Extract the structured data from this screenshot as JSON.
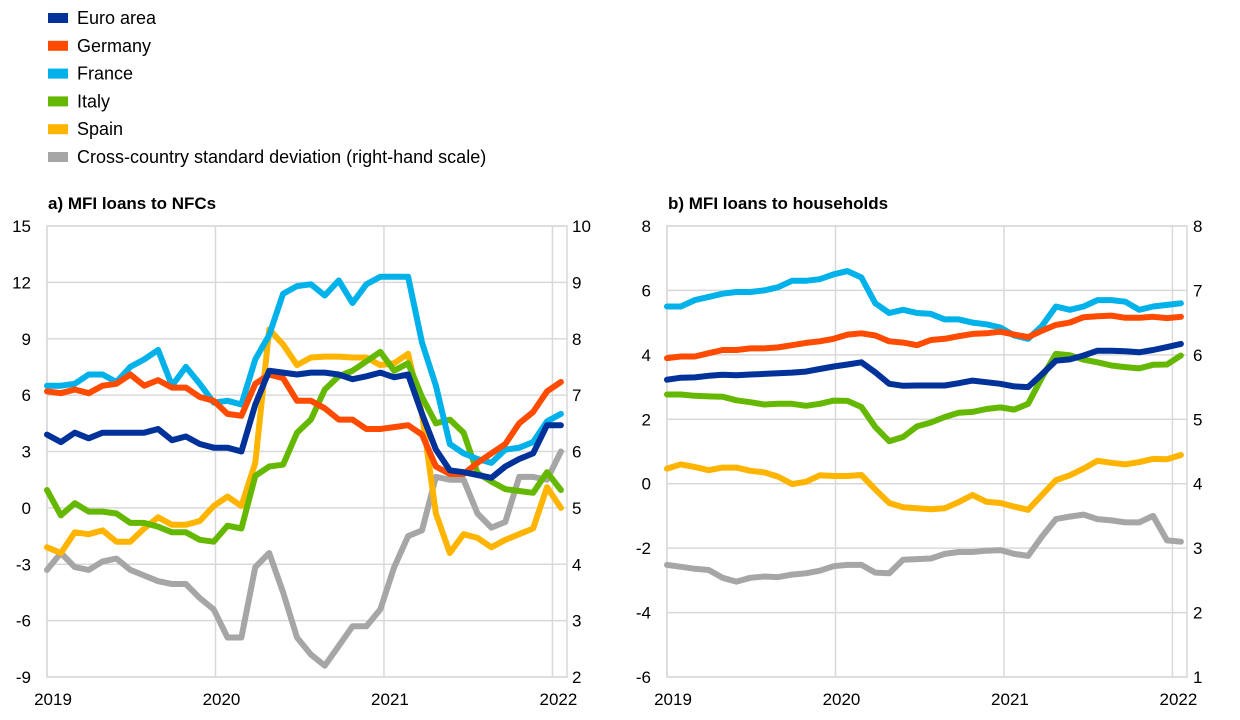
{
  "chart_data": {
    "legend": {
      "placement": "top-left",
      "entries": [
        {
          "key": "euro",
          "label": "Euro area",
          "color": "#003299"
        },
        {
          "key": "germany",
          "label": "Germany",
          "color": "#FF4B00"
        },
        {
          "key": "france",
          "label": "France",
          "color": "#00B1EA"
        },
        {
          "key": "italy",
          "label": "Italy",
          "color": "#65B800"
        },
        {
          "key": "spain",
          "label": "Spain",
          "color": "#FFB400"
        },
        {
          "key": "sd",
          "label": "Cross-country standard deviation (right-hand scale)",
          "color": "#A6A6A6"
        }
      ]
    },
    "panels": [
      {
        "type": "line",
        "title": "a) MFI loans to NFCs",
        "frequency": "monthly",
        "x_start": "2019-01",
        "xticks": [
          "2019",
          "2020",
          "2021",
          "2022"
        ],
        "ylim": [
          -9,
          15
        ],
        "yticks": [
          "15",
          "12",
          "9",
          "6",
          "3",
          "0",
          "-3",
          "-6",
          "-9"
        ],
        "y2lim": [
          2,
          10
        ],
        "y2ticks": [
          "10",
          "9",
          "8",
          "7",
          "6",
          "5",
          "4",
          "3",
          "2"
        ],
        "grid": true,
        "series": [
          {
            "key": "euro",
            "axis": "left",
            "values": [
              3.9,
              3.5,
              4.0,
              3.7,
              4.0,
              4.0,
              4.0,
              4.0,
              4.2,
              3.6,
              3.8,
              3.4,
              3.2,
              3.2,
              3.0,
              5.5,
              7.3,
              7.2,
              7.1,
              7.2,
              7.2,
              7.1,
              6.85,
              7.0,
              7.2,
              6.95,
              7.1,
              5.0,
              3.1,
              2.0,
              1.9,
              1.75,
              1.6,
              2.2,
              2.6,
              2.9,
              4.4,
              4.4
            ]
          },
          {
            "key": "germany",
            "axis": "left",
            "values": [
              6.2,
              6.1,
              6.3,
              6.1,
              6.5,
              6.6,
              7.1,
              6.5,
              6.8,
              6.4,
              6.4,
              5.9,
              5.7,
              5.0,
              4.9,
              6.6,
              7.1,
              6.9,
              5.7,
              5.7,
              5.3,
              4.7,
              4.7,
              4.2,
              4.2,
              4.3,
              4.4,
              3.9,
              2.2,
              1.8,
              1.8,
              2.4,
              2.9,
              3.4,
              4.5,
              5.1,
              6.2,
              6.7
            ]
          },
          {
            "key": "france",
            "axis": "left",
            "values": [
              6.5,
              6.5,
              6.6,
              7.1,
              7.1,
              6.7,
              7.5,
              7.9,
              8.4,
              6.5,
              7.5,
              6.6,
              5.6,
              5.7,
              5.5,
              7.9,
              9.2,
              11.4,
              11.8,
              11.9,
              11.3,
              12.1,
              10.9,
              11.9,
              12.3,
              12.3,
              12.3,
              8.8,
              6.5,
              3.4,
              2.9,
              2.6,
              2.4,
              3.1,
              3.2,
              3.5,
              4.6,
              5.0
            ]
          },
          {
            "key": "italy",
            "axis": "left",
            "values": [
              0.95,
              -0.4,
              0.25,
              -0.2,
              -0.2,
              -0.3,
              -0.8,
              -0.8,
              -1.0,
              -1.3,
              -1.3,
              -1.7,
              -1.8,
              -0.95,
              -1.1,
              1.7,
              2.2,
              2.3,
              4.0,
              4.7,
              6.3,
              7.0,
              7.3,
              7.8,
              8.3,
              7.3,
              7.7,
              5.9,
              4.5,
              4.7,
              4.0,
              1.85,
              1.4,
              1.0,
              0.9,
              0.8,
              1.9,
              0.95
            ]
          },
          {
            "key": "spain",
            "axis": "left",
            "values": [
              -2.1,
              -2.4,
              -1.3,
              -1.4,
              -1.2,
              -1.8,
              -1.8,
              -1.1,
              -0.5,
              -0.9,
              -0.9,
              -0.7,
              0.1,
              0.6,
              0.1,
              2.4,
              9.5,
              8.7,
              7.6,
              8.0,
              8.05,
              8.05,
              8.0,
              8.0,
              7.6,
              7.7,
              8.2,
              5.0,
              -0.3,
              -2.4,
              -1.4,
              -1.6,
              -2.1,
              -1.7,
              -1.4,
              -1.1,
              1.1,
              0.0
            ]
          },
          {
            "key": "sd",
            "axis": "right",
            "values": [
              3.9,
              4.2,
              3.95,
              3.9,
              4.05,
              4.1,
              3.9,
              3.8,
              3.7,
              3.65,
              3.65,
              3.4,
              3.2,
              2.7,
              2.7,
              3.95,
              4.2,
              3.5,
              2.7,
              2.4,
              2.2,
              2.55,
              2.9,
              2.9,
              3.2,
              3.95,
              4.5,
              4.6,
              5.55,
              5.5,
              5.5,
              4.9,
              4.65,
              4.75,
              5.55,
              5.55,
              5.5,
              6.0
            ]
          }
        ]
      },
      {
        "type": "line",
        "title": "b) MFI loans to households",
        "frequency": "monthly",
        "x_start": "2019-01",
        "xticks": [
          "2019",
          "2020",
          "2021",
          "2022"
        ],
        "ylim": [
          -6,
          8
        ],
        "yticks": [
          "8",
          "6",
          "4",
          "2",
          "0",
          "-2",
          "-4",
          "-6"
        ],
        "y2lim": [
          1,
          8
        ],
        "y2ticks": [
          "8",
          "7",
          "6",
          "5",
          "4",
          "3",
          "2",
          "1"
        ],
        "grid": true,
        "series": [
          {
            "key": "euro",
            "axis": "left",
            "values": [
              3.23,
              3.29,
              3.3,
              3.35,
              3.38,
              3.37,
              3.39,
              3.41,
              3.43,
              3.45,
              3.48,
              3.56,
              3.64,
              3.7,
              3.77,
              3.46,
              3.1,
              3.04,
              3.05,
              3.05,
              3.05,
              3.12,
              3.2,
              3.15,
              3.1,
              3.02,
              3.0,
              3.4,
              3.82,
              3.86,
              3.98,
              4.13,
              4.13,
              4.11,
              4.08,
              4.15,
              4.24,
              4.34
            ]
          },
          {
            "key": "germany",
            "axis": "left",
            "values": [
              3.9,
              3.95,
              3.95,
              4.05,
              4.15,
              4.15,
              4.2,
              4.2,
              4.23,
              4.3,
              4.37,
              4.42,
              4.5,
              4.63,
              4.67,
              4.6,
              4.42,
              4.38,
              4.3,
              4.46,
              4.5,
              4.58,
              4.65,
              4.67,
              4.72,
              4.63,
              4.55,
              4.75,
              4.93,
              5.0,
              5.17,
              5.2,
              5.22,
              5.15,
              5.15,
              5.18,
              5.14,
              5.18
            ]
          },
          {
            "key": "france",
            "axis": "left",
            "values": [
              5.5,
              5.5,
              5.7,
              5.8,
              5.9,
              5.95,
              5.95,
              6.0,
              6.1,
              6.3,
              6.3,
              6.35,
              6.5,
              6.6,
              6.4,
              5.6,
              5.3,
              5.4,
              5.3,
              5.27,
              5.1,
              5.1,
              5.0,
              4.95,
              4.85,
              4.6,
              4.5,
              4.9,
              5.5,
              5.4,
              5.5,
              5.7,
              5.7,
              5.65,
              5.4,
              5.5,
              5.55,
              5.6
            ]
          },
          {
            "key": "italy",
            "axis": "left",
            "values": [
              2.77,
              2.77,
              2.73,
              2.71,
              2.7,
              2.59,
              2.53,
              2.46,
              2.48,
              2.48,
              2.42,
              2.48,
              2.58,
              2.57,
              2.38,
              1.76,
              1.32,
              1.45,
              1.78,
              1.9,
              2.07,
              2.2,
              2.23,
              2.32,
              2.37,
              2.3,
              2.48,
              3.3,
              4.03,
              3.99,
              3.85,
              3.77,
              3.67,
              3.62,
              3.58,
              3.69,
              3.7,
              3.98
            ]
          },
          {
            "key": "spain",
            "axis": "left",
            "values": [
              0.47,
              0.6,
              0.52,
              0.42,
              0.5,
              0.5,
              0.4,
              0.35,
              0.22,
              -0.01,
              0.06,
              0.26,
              0.24,
              0.24,
              0.27,
              -0.18,
              -0.6,
              -0.73,
              -0.76,
              -0.79,
              -0.76,
              -0.57,
              -0.35,
              -0.56,
              -0.6,
              -0.71,
              -0.81,
              -0.35,
              0.11,
              0.26,
              0.47,
              0.71,
              0.65,
              0.6,
              0.67,
              0.77,
              0.76,
              0.89
            ]
          },
          {
            "key": "sd",
            "axis": "right",
            "values": [
              2.74,
              2.71,
              2.68,
              2.66,
              2.54,
              2.48,
              2.54,
              2.56,
              2.55,
              2.59,
              2.61,
              2.65,
              2.72,
              2.74,
              2.74,
              2.62,
              2.61,
              2.82,
              2.83,
              2.84,
              2.91,
              2.94,
              2.94,
              2.96,
              2.97,
              2.91,
              2.88,
              3.18,
              3.45,
              3.49,
              3.52,
              3.45,
              3.43,
              3.4,
              3.4,
              3.5,
              3.12,
              3.1
            ]
          }
        ]
      }
    ]
  }
}
